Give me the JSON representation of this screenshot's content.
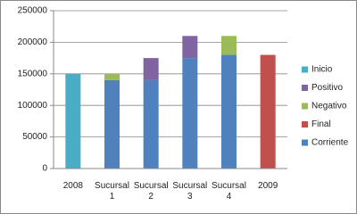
{
  "chart_data": {
    "type": "bar",
    "stacked": true,
    "categories": [
      "2008",
      "Sucursal 1",
      "Sucursal 2",
      "Sucursal 3",
      "Sucursal 4",
      "2009"
    ],
    "series": [
      {
        "name": "Corriente",
        "color": "#4f81bd",
        "values": [
          null,
          140000,
          140000,
          175000,
          180000,
          null
        ]
      },
      {
        "name": "Final",
        "color": "#c0504d",
        "values": [
          null,
          null,
          null,
          null,
          null,
          180000
        ]
      },
      {
        "name": "Negativo",
        "color": "#9bbb59",
        "values": [
          null,
          10000,
          null,
          null,
          30000,
          null
        ]
      },
      {
        "name": "Positivo",
        "color": "#8064a2",
        "values": [
          null,
          null,
          35000,
          35000,
          null,
          null
        ]
      },
      {
        "name": "Inicio",
        "color": "#4bacc6",
        "values": [
          150000,
          null,
          null,
          null,
          null,
          null
        ]
      }
    ],
    "ylim": [
      0,
      250000
    ],
    "yticks": [
      0,
      50000,
      100000,
      150000,
      200000,
      250000
    ],
    "grid": true,
    "legend": "right"
  }
}
